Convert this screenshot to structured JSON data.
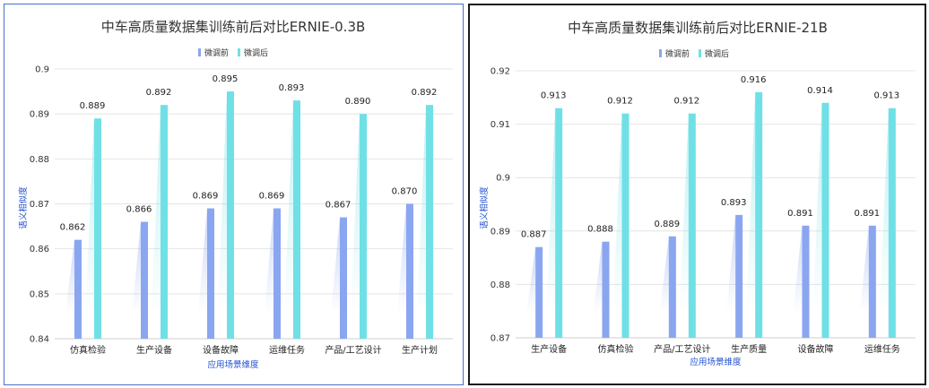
{
  "chart_data": [
    {
      "type": "bar",
      "title": "中车高质量数据集训练前后对比ERNIE-0.3B",
      "xlabel": "应用场景维度",
      "ylabel": "语义相似度",
      "ylim": [
        0.84,
        0.9
      ],
      "yticks": [
        "0.84",
        "0.85",
        "0.86",
        "0.87",
        "0.88",
        "0.89",
        "0.9"
      ],
      "grid": true,
      "legend": "top-center",
      "categories": [
        "仿真检验",
        "生产设备",
        "设备故障",
        "运维任务",
        "产品/工艺设计",
        "生产计划"
      ],
      "series": [
        {
          "name": "微调前",
          "color": "#8aa6f0",
          "values": [
            0.862,
            0.866,
            0.869,
            0.869,
            0.867,
            0.87
          ],
          "labels": [
            "0.862",
            "0.866",
            "0.869",
            "0.869",
            "0.867",
            "0.870"
          ]
        },
        {
          "name": "微调后",
          "color": "#6fe0e6",
          "values": [
            0.889,
            0.892,
            0.895,
            0.893,
            0.89,
            0.892
          ],
          "labels": [
            "0.889",
            "0.892",
            "0.895",
            "0.893",
            "0.890",
            "0.892"
          ]
        }
      ]
    },
    {
      "type": "bar",
      "title": "中车高质量数据集训练前后对比ERNIE-21B",
      "xlabel": "应用场景维度",
      "ylabel": "语义相似度",
      "ylim": [
        0.87,
        0.92
      ],
      "yticks": [
        "0.87",
        "0.88",
        "0.89",
        "0.9",
        "0.91",
        "0.92"
      ],
      "grid": true,
      "legend": "top-center",
      "categories": [
        "生产设备",
        "仿真检验",
        "产品/工艺设计",
        "生产质量",
        "设备故障",
        "运维任务"
      ],
      "series": [
        {
          "name": "微调前",
          "color": "#8aa6f0",
          "values": [
            0.887,
            0.888,
            0.889,
            0.893,
            0.891,
            0.891
          ],
          "labels": [
            "0.887",
            "0.888",
            "0.889",
            "0.893",
            "0.891",
            "0.891"
          ]
        },
        {
          "name": "微调后",
          "color": "#6fe0e6",
          "values": [
            0.913,
            0.912,
            0.912,
            0.916,
            0.914,
            0.913
          ],
          "labels": [
            "0.913",
            "0.912",
            "0.912",
            "0.916",
            "0.914",
            "0.913"
          ]
        }
      ]
    }
  ]
}
